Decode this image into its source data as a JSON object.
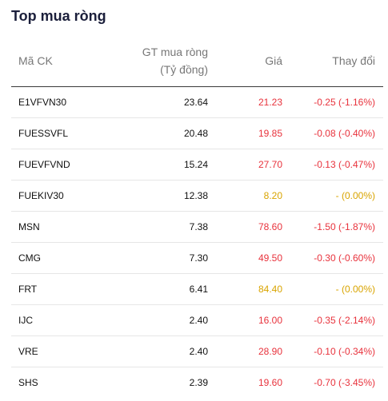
{
  "title": "Top mua ròng",
  "columns": {
    "code": "Mã CK",
    "value_line1": "GT mua ròng",
    "value_line2": "(Tỷ đồng)",
    "price": "Giá",
    "change": "Thay đổi"
  },
  "colors": {
    "down": "#e8323c",
    "unchanged": "#d9a400"
  },
  "rows": [
    {
      "code": "E1VFVN30",
      "value": "23.64",
      "price": "21.23",
      "change": "-0.25 (-1.16%)",
      "status": "down"
    },
    {
      "code": "FUESSVFL",
      "value": "20.48",
      "price": "19.85",
      "change": "-0.08 (-0.40%)",
      "status": "down"
    },
    {
      "code": "FUEVFVND",
      "value": "15.24",
      "price": "27.70",
      "change": "-0.13 (-0.47%)",
      "status": "down"
    },
    {
      "code": "FUEKIV30",
      "value": "12.38",
      "price": "8.20",
      "change": "- (0.00%)",
      "status": "unchanged"
    },
    {
      "code": "MSN",
      "value": "7.38",
      "price": "78.60",
      "change": "-1.50 (-1.87%)",
      "status": "down"
    },
    {
      "code": "CMG",
      "value": "7.30",
      "price": "49.50",
      "change": "-0.30 (-0.60%)",
      "status": "down"
    },
    {
      "code": "FRT",
      "value": "6.41",
      "price": "84.40",
      "change": "- (0.00%)",
      "status": "unchanged"
    },
    {
      "code": "IJC",
      "value": "2.40",
      "price": "16.00",
      "change": "-0.35 (-2.14%)",
      "status": "down"
    },
    {
      "code": "VRE",
      "value": "2.40",
      "price": "28.90",
      "change": "-0.10 (-0.34%)",
      "status": "down"
    },
    {
      "code": "SHS",
      "value": "2.39",
      "price": "19.60",
      "change": "-0.70 (-3.45%)",
      "status": "down"
    }
  ]
}
